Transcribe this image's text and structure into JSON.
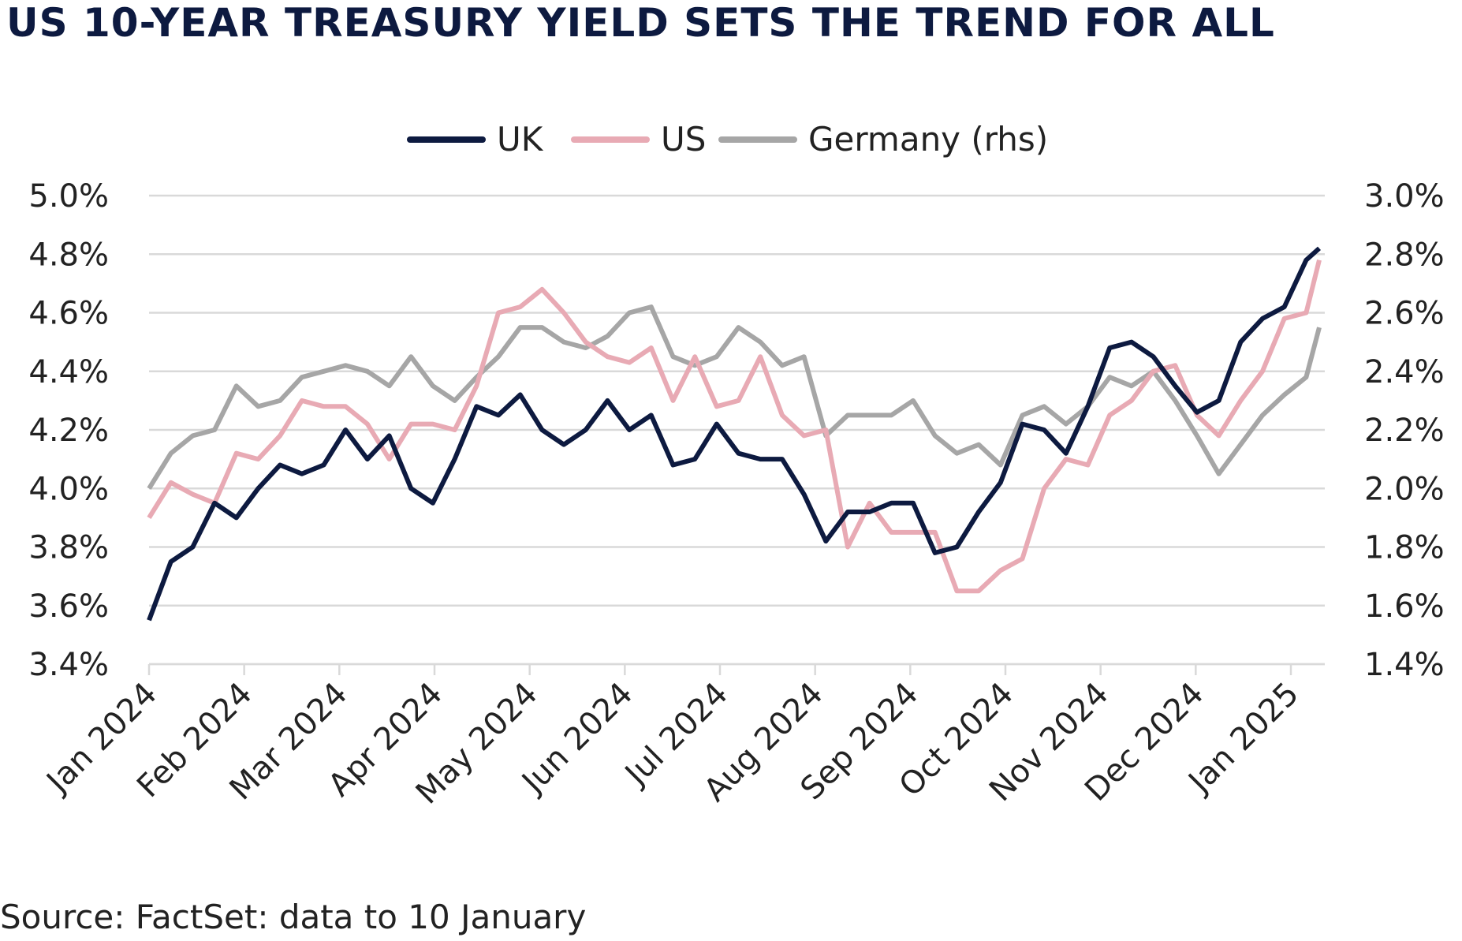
{
  "title": "US 10-YEAR TREASURY YIELD SETS THE TREND FOR ALL",
  "source": "Source: FactSet: data to 10 January",
  "chart_data": {
    "type": "line",
    "title": "US 10-YEAR TREASURY YIELD SETS THE TREND FOR ALL",
    "xlabel": "",
    "ylabel": "",
    "x_unit": "weeks since 1 Jan 2024",
    "x": [
      0,
      1,
      2,
      3,
      4,
      5,
      6,
      7,
      8,
      9,
      10,
      11,
      12,
      13,
      14,
      15,
      16,
      17,
      18,
      19,
      20,
      21,
      22,
      23,
      24,
      25,
      26,
      27,
      28,
      29,
      30,
      31,
      32,
      33,
      34,
      35,
      36,
      37,
      38,
      39,
      40,
      41,
      42,
      43,
      44,
      45,
      46,
      47,
      48,
      49,
      50,
      51,
      52,
      53,
      53.6
    ],
    "x_ticks": [
      "Jan 2024",
      "Feb 2024",
      "Mar 2024",
      "Apr 2024",
      "May 2024",
      "Jun 2024",
      "Jul 2024",
      "Aug 2024",
      "Sep 2024",
      "Oct 2024",
      "Nov 2024",
      "Dec 2024",
      "Jan 2025"
    ],
    "ylim_left": [
      3.4,
      5.0
    ],
    "y_ticks_left": [
      "5.0%",
      "4.8%",
      "4.6%",
      "4.4%",
      "4.2%",
      "4.0%",
      "3.8%",
      "3.6%",
      "3.4%"
    ],
    "ylim_right": [
      1.4,
      3.0
    ],
    "y_ticks_right": [
      "3.0%",
      "2.8%",
      "2.6%",
      "2.4%",
      "2.2%",
      "2.0%",
      "1.8%",
      "1.6%",
      "1.4%"
    ],
    "grid": true,
    "legend_position": "top-center",
    "series": [
      {
        "name": "UK",
        "axis": "left",
        "color": "#0d1a40",
        "values": [
          3.55,
          3.75,
          3.8,
          3.95,
          3.9,
          4.0,
          4.08,
          4.05,
          4.08,
          4.2,
          4.1,
          4.18,
          4.0,
          3.95,
          4.1,
          4.28,
          4.25,
          4.32,
          4.2,
          4.15,
          4.2,
          4.3,
          4.2,
          4.25,
          4.08,
          4.1,
          4.22,
          4.12,
          4.1,
          4.1,
          3.98,
          3.82,
          3.92,
          3.92,
          3.95,
          3.95,
          3.78,
          3.8,
          3.92,
          4.02,
          4.22,
          4.2,
          4.12,
          4.28,
          4.48,
          4.5,
          4.45,
          4.35,
          4.26,
          4.3,
          4.5,
          4.58,
          4.62,
          4.78,
          4.82
        ]
      },
      {
        "name": "US",
        "axis": "left",
        "color": "#e8aab4",
        "values": [
          3.9,
          4.02,
          3.98,
          3.95,
          4.12,
          4.1,
          4.18,
          4.3,
          4.28,
          4.28,
          4.22,
          4.1,
          4.22,
          4.22,
          4.2,
          4.35,
          4.6,
          4.62,
          4.68,
          4.6,
          4.5,
          4.45,
          4.43,
          4.48,
          4.3,
          4.45,
          4.28,
          4.3,
          4.45,
          4.25,
          4.18,
          4.2,
          3.8,
          3.95,
          3.85,
          3.85,
          3.85,
          3.65,
          3.65,
          3.72,
          3.76,
          4.0,
          4.1,
          4.08,
          4.25,
          4.3,
          4.4,
          4.42,
          4.25,
          4.18,
          4.3,
          4.4,
          4.58,
          4.6,
          4.78
        ]
      },
      {
        "name": "Germany (rhs)",
        "axis": "right",
        "color": "#a6a6a6",
        "values": [
          2.0,
          2.12,
          2.18,
          2.2,
          2.35,
          2.28,
          2.3,
          2.38,
          2.4,
          2.42,
          2.4,
          2.35,
          2.45,
          2.35,
          2.3,
          2.38,
          2.45,
          2.55,
          2.55,
          2.5,
          2.48,
          2.52,
          2.6,
          2.62,
          2.45,
          2.42,
          2.45,
          2.55,
          2.5,
          2.42,
          2.45,
          2.18,
          2.25,
          2.25,
          2.25,
          2.3,
          2.18,
          2.12,
          2.15,
          2.08,
          2.25,
          2.28,
          2.22,
          2.28,
          2.38,
          2.35,
          2.4,
          2.3,
          2.18,
          2.05,
          2.15,
          2.25,
          2.32,
          2.38,
          2.55
        ]
      }
    ]
  }
}
